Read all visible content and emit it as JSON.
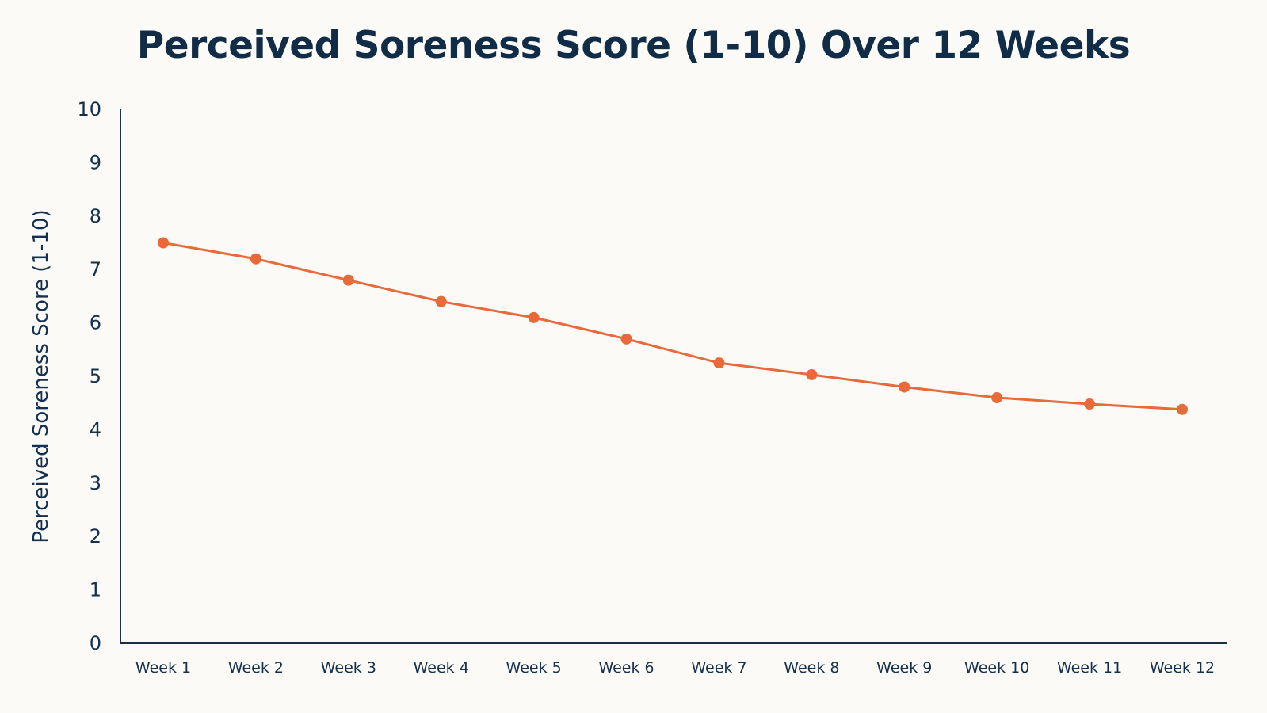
{
  "chart_data": {
    "type": "line",
    "title": "Perceived Soreness Score (1-10) Over 12 Weeks",
    "xlabel": "",
    "ylabel": "Perceived Soreness Score (1-10)",
    "categories": [
      "Week 1",
      "Week 2",
      "Week 3",
      "Week 4",
      "Week 5",
      "Week 6",
      "Week 7",
      "Week 8",
      "Week 9",
      "Week 10",
      "Week 11",
      "Week 12"
    ],
    "series": [
      {
        "values": [
          7.5,
          7.2,
          6.8,
          6.4,
          6.1,
          5.7,
          5.25,
          5.03,
          4.8,
          4.6,
          4.48,
          4.38
        ],
        "color": "#e8693a"
      }
    ],
    "yticks": [
      0,
      1,
      2,
      3,
      4,
      5,
      6,
      7,
      8,
      9,
      10
    ],
    "ylim": [
      0,
      10
    ],
    "grid": false,
    "legend": "none",
    "colors": {
      "background": "#fbfaf7",
      "text": "#14304d",
      "axis": "#1b2f45",
      "line": "#e8693a"
    }
  }
}
